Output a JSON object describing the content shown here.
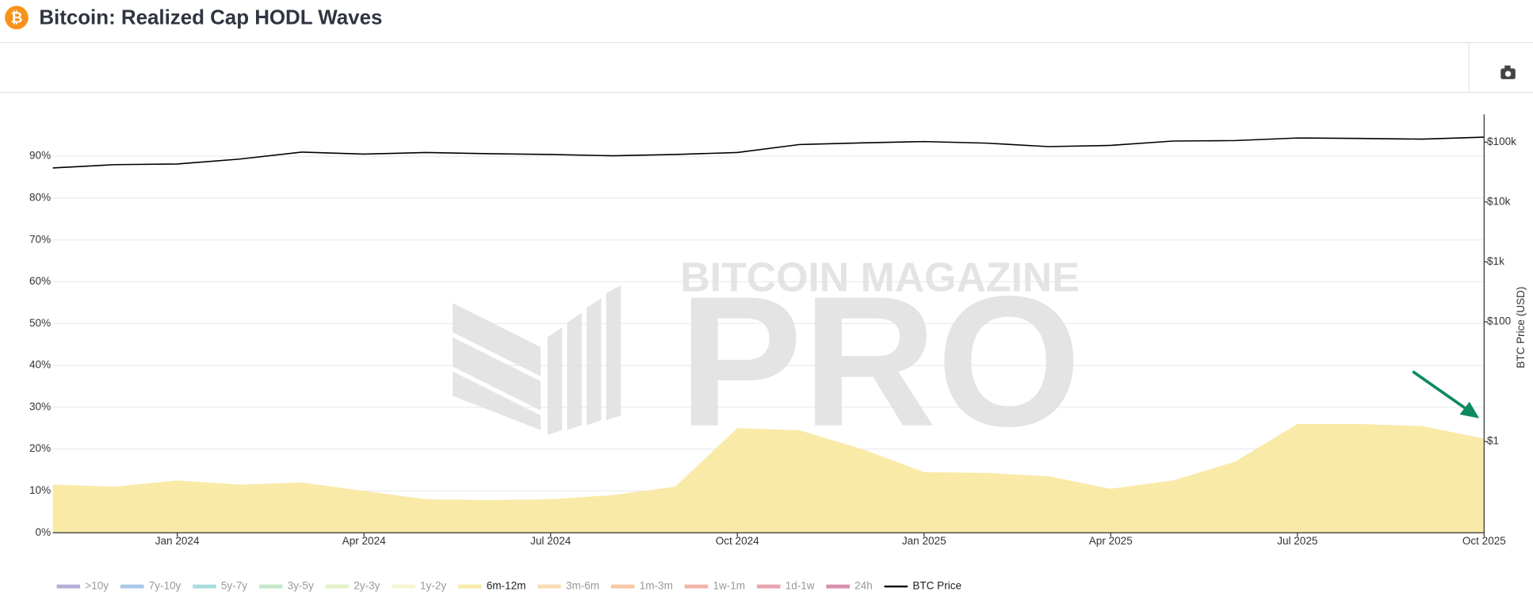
{
  "header": {
    "icon": "₿",
    "title": "Bitcoin: Realized Cap HODL Waves"
  },
  "chart_data": {
    "type": "area",
    "watermark": [
      "BITCOIN MAGAZINE",
      "PRO"
    ],
    "y2_label": "BTC Price (USD)",
    "x": [
      "2023-11",
      "2023-12",
      "2024-01",
      "2024-02",
      "2024-03",
      "2024-04",
      "2024-05",
      "2024-06",
      "2024-07",
      "2024-08",
      "2024-09",
      "2024-10",
      "2024-11",
      "2024-12",
      "2025-01",
      "2025-02",
      "2025-03",
      "2025-04",
      "2025-05",
      "2025-06",
      "2025-07",
      "2025-08",
      "2025-09",
      "2025-10"
    ],
    "xlim": [
      "2023-11",
      "2025-10"
    ],
    "xticks": [
      {
        "value": "2024-01",
        "label": "Jan 2024"
      },
      {
        "value": "2024-04",
        "label": "Apr 2024"
      },
      {
        "value": "2024-07",
        "label": "Jul 2024"
      },
      {
        "value": "2024-10",
        "label": "Oct 2024"
      },
      {
        "value": "2025-01",
        "label": "Jan 2025"
      },
      {
        "value": "2025-04",
        "label": "Apr 2025"
      },
      {
        "value": "2025-07",
        "label": "Jul 2025"
      },
      {
        "value": "2025-10",
        "label": "Oct 2025"
      }
    ],
    "ylim": [
      0,
      100
    ],
    "yticks": [
      {
        "value": 0,
        "label": "0%"
      },
      {
        "value": 10,
        "label": "10%"
      },
      {
        "value": 20,
        "label": "20%"
      },
      {
        "value": 30,
        "label": "30%"
      },
      {
        "value": 40,
        "label": "40%"
      },
      {
        "value": 50,
        "label": "50%"
      },
      {
        "value": 60,
        "label": "60%"
      },
      {
        "value": 70,
        "label": "70%"
      },
      {
        "value": 80,
        "label": "80%"
      },
      {
        "value": 90,
        "label": "90%"
      }
    ],
    "y2lim": [
      0.03,
      290000
    ],
    "y2_log": true,
    "y2ticks": [
      {
        "value": 1,
        "label": "$1"
      },
      {
        "value": 100,
        "label": "$100"
      },
      {
        "value": 1000,
        "label": "$1k"
      },
      {
        "value": 10000,
        "label": "$10k"
      },
      {
        "value": 100000,
        "label": "$100k"
      }
    ],
    "grid": true,
    "legend": "bottom-left",
    "series": [
      {
        "name": ">10y",
        "color": "#b7aed8",
        "visible": false
      },
      {
        "name": "7y-10y",
        "color": "#a9c8e8",
        "visible": false
      },
      {
        "name": "5y-7y",
        "color": "#a8dcdc",
        "visible": false
      },
      {
        "name": "3y-5y",
        "color": "#c6e8c8",
        "visible": false
      },
      {
        "name": "2y-3y",
        "color": "#e4f1c8",
        "visible": false
      },
      {
        "name": "1y-2y",
        "color": "#f6f6d2",
        "visible": false
      },
      {
        "name": "6m-12m",
        "color": "#f9eaa8",
        "visible": true,
        "values": [
          11.5,
          11,
          12.5,
          11.5,
          12,
          10,
          8,
          7.8,
          8,
          9,
          11,
          25,
          24.5,
          20,
          14.5,
          14.3,
          13.5,
          10.5,
          12.5,
          17,
          26,
          26,
          25.5,
          22.5
        ]
      },
      {
        "name": "3m-6m",
        "color": "#f9dcb4",
        "visible": false
      },
      {
        "name": "1m-3m",
        "color": "#f8c8a4",
        "visible": false
      },
      {
        "name": "1w-1m",
        "color": "#f2b4a8",
        "visible": false
      },
      {
        "name": "1d-1w",
        "color": "#e8a4ae",
        "visible": false
      },
      {
        "name": "24h",
        "color": "#d890ac",
        "visible": false
      },
      {
        "name": "BTC Price",
        "color": "#000000",
        "visible": true,
        "axis": "y2",
        "line": true,
        "values": [
          37000,
          42000,
          43000,
          52000,
          68000,
          63000,
          67000,
          64000,
          62000,
          59000,
          62000,
          67000,
          91000,
          97000,
          102000,
          96000,
          84000,
          88000,
          104000,
          106000,
          117000,
          115000,
          112000,
          121000
        ]
      }
    ]
  }
}
